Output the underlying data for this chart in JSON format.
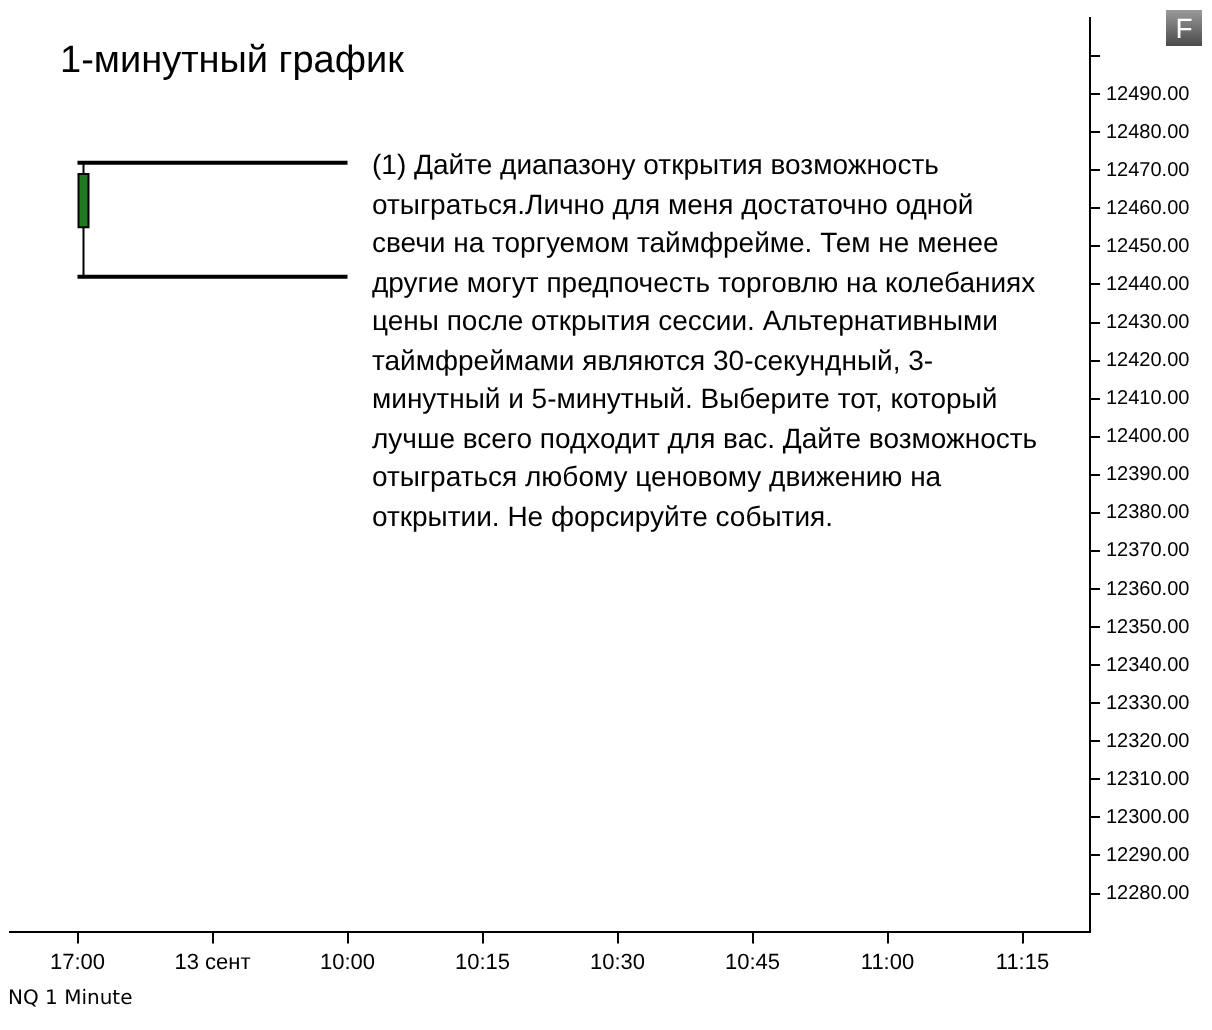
{
  "chart_data": {
    "type": "candlestick",
    "title": "1-минутный график",
    "categories": [
      "17:00",
      "13 сент",
      "10:00",
      "10:15",
      "10:30",
      "10:45",
      "11:00",
      "11:15"
    ],
    "series": [
      {
        "type": "candlestick",
        "color": "#217a21",
        "ohlc": [
          [
            12455,
            12472,
            12442,
            12469
          ],
          null,
          null,
          null,
          null,
          null,
          null,
          null
        ]
      },
      {
        "type": "line",
        "color": "#000000",
        "values": [
          12472,
          12472,
          12472,
          null,
          null,
          null,
          null,
          null
        ]
      },
      {
        "type": "line",
        "color": "#000000",
        "values": [
          12442,
          12442,
          12442,
          null,
          null,
          null,
          null,
          null
        ]
      }
    ],
    "ylim": [
      12270,
      12510
    ],
    "yticks": [
      {
        "value": 12280,
        "label": "12280.00"
      },
      {
        "value": 12290,
        "label": "12290.00"
      },
      {
        "value": 12300,
        "label": "12300.00"
      },
      {
        "value": 12310,
        "label": "12310.00"
      },
      {
        "value": 12320,
        "label": "12320.00"
      },
      {
        "value": 12330,
        "label": "12330.00"
      },
      {
        "value": 12340,
        "label": "12340.00"
      },
      {
        "value": 12350,
        "label": "12350.00"
      },
      {
        "value": 12360,
        "label": "12360.00"
      },
      {
        "value": 12370,
        "label": "12370.00"
      },
      {
        "value": 12380,
        "label": "12380.00"
      },
      {
        "value": 12390,
        "label": "12390.00"
      },
      {
        "value": 12400,
        "label": "12400.00"
      },
      {
        "value": 12410,
        "label": "12410.00"
      },
      {
        "value": 12420,
        "label": "12420.00"
      },
      {
        "value": 12430,
        "label": "12430.00"
      },
      {
        "value": 12440,
        "label": "12440.00"
      },
      {
        "value": 12450,
        "label": "12450.00"
      },
      {
        "value": 12460,
        "label": "12460.00"
      },
      {
        "value": 12470,
        "label": "12470.00"
      },
      {
        "value": 12480,
        "label": "12480.00"
      },
      {
        "value": 12490,
        "label": "12490.00"
      },
      {
        "value": 12500,
        "label": null
      }
    ],
    "annotations": [
      "(1) Дайте диапазону открытия возможность отыграться.Лично для меня достаточно одной свечи на торгуемом таймфрейме. Тем не менее другие могут предпочесть торговлю на колебаниях цены после открытия сессии. Альтернативными таймфреймами являются 30-секундный, 3-минутный и 5-минутный. Выберите тот, который лучше всего подходит для вас. Дайте возможность отыграться любому ценовому движению на открытии. Не форсируйте события.",
      "NQ 1 Minute",
      "F"
    ],
    "grid": false,
    "legend": false
  }
}
